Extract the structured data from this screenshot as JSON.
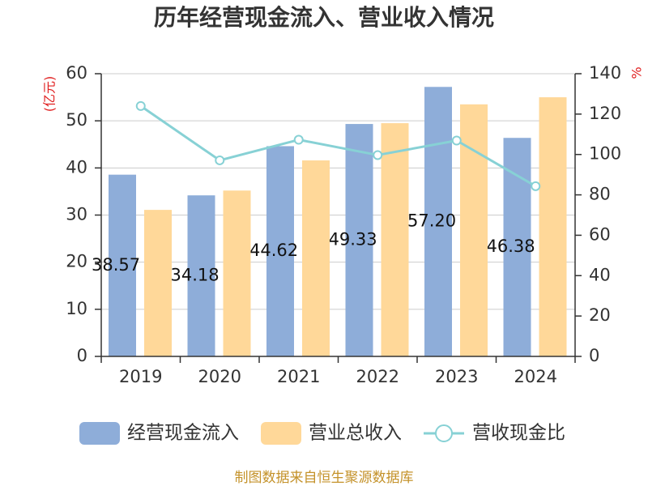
{
  "footer": "制图数据来自恒生聚源数据库",
  "colors": {
    "cash_inflow": "#8eadd9",
    "revenue": "#ffd899",
    "ratio": "#87d1d5",
    "axis_title": "#e02020",
    "footer": "#c4922a"
  },
  "chart_data": {
    "type": "bar",
    "title": "历年经营现金流入、营业收入情况",
    "categories": [
      "2019",
      "2020",
      "2021",
      "2022",
      "2023",
      "2024"
    ],
    "series": [
      {
        "name": "经营现金流入",
        "type": "bar",
        "axis": "left",
        "values": [
          38.57,
          34.18,
          44.62,
          49.33,
          57.2,
          46.38
        ],
        "labels": [
          "38.57",
          "34.18",
          "44.62",
          "49.33",
          "57.20",
          "46.38"
        ]
      },
      {
        "name": "营业总收入",
        "type": "bar",
        "axis": "left",
        "values": [
          31.1,
          35.2,
          41.6,
          49.5,
          53.5,
          55.0
        ]
      },
      {
        "name": "营收现金比",
        "type": "line",
        "axis": "right",
        "values": [
          124.0,
          97.1,
          107.3,
          99.7,
          106.9,
          84.3
        ]
      }
    ],
    "xlabel": "",
    "ylabel": "(亿元)",
    "ylim": [
      0,
      60
    ],
    "yticks": [
      0,
      10,
      20,
      30,
      40,
      50,
      60
    ],
    "y2label": "%",
    "y2lim": [
      0,
      140
    ],
    "y2ticks": [
      0,
      20,
      40,
      60,
      80,
      100,
      120,
      140
    ],
    "grid": true,
    "legend": "bottom"
  }
}
